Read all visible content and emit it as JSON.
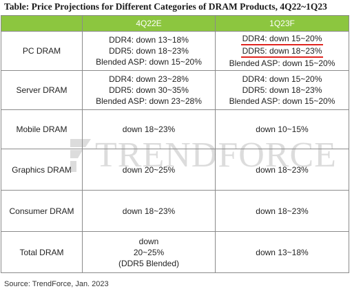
{
  "title": "Table: Price Projections for Different Categories of DRAM Products, 4Q22~1Q23",
  "columns": [
    "",
    "4Q22E",
    "1Q23F"
  ],
  "rows": [
    {
      "category": "PC DRAM",
      "q4_22": [
        "DDR4: down 13~18%",
        "DDR5: down 18~23%",
        "Blended ASP: down 15~20%"
      ],
      "q1_23": [
        "DDR4: down 15~20%",
        "DDR5: down 18~23%",
        "Blended ASP: down 15~20%"
      ]
    },
    {
      "category": "Server DRAM",
      "q4_22": [
        "DDR4: down 23~28%",
        "DDR5: down 30~35%",
        "Blended ASP: down 23~28%"
      ],
      "q1_23": [
        "DDR4: down 15~20%",
        "DDR5: down 18~23%",
        "Blended ASP: down 15~20%"
      ]
    },
    {
      "category": "Mobile DRAM",
      "q4_22": [
        "down 18~23%"
      ],
      "q1_23": [
        "down 10~15%"
      ]
    },
    {
      "category": "Graphics DRAM",
      "q4_22": [
        "down 20~25%"
      ],
      "q1_23": [
        "down 18~23%"
      ]
    },
    {
      "category": "Consumer DRAM",
      "q4_22": [
        "down 18~23%"
      ],
      "q1_23": [
        "down 18~23%"
      ]
    },
    {
      "category": "Total DRAM",
      "q4_22": [
        "down",
        "20~25%",
        "(DDR5 Blended)"
      ],
      "q1_23": [
        "down 13~18%"
      ]
    }
  ],
  "source": "Source: TrendForce, Jan. 2023",
  "watermark": "TRENDFORCE",
  "colors": {
    "header_bg": "#8cc63f",
    "header_text": "#ffffff",
    "highlight_underline": "#e0231e",
    "border": "#8a8a8a"
  }
}
